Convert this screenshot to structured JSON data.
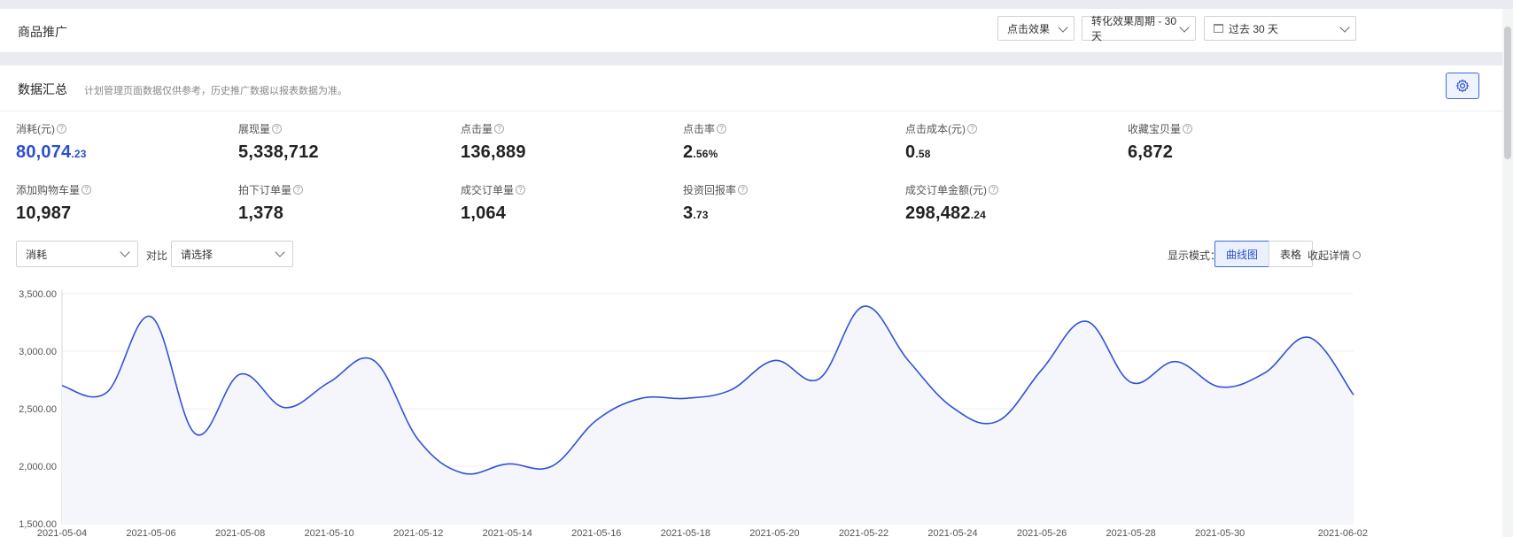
{
  "header": {
    "title": "商品推广",
    "filters": {
      "effect": "点击效果",
      "period": "转化效果周期 - 30天",
      "range": "过去 30 天"
    }
  },
  "summary": {
    "title": "数据汇总",
    "note": "计划管理页面数据仅供参考，历史推广数据以报表数据为准。",
    "metrics": [
      {
        "label": "消耗(元)",
        "int": "80,074",
        "dec": ".23"
      },
      {
        "label": "展现量",
        "int": "5,338,712",
        "dec": ""
      },
      {
        "label": "点击量",
        "int": "136,889",
        "dec": ""
      },
      {
        "label": "点击率",
        "int": "2",
        "dec": ".56%"
      },
      {
        "label": "点击成本(元)",
        "int": "0",
        "dec": ".58"
      },
      {
        "label": "收藏宝贝量",
        "int": "6,872",
        "dec": ""
      },
      {
        "label": "添加购物车量",
        "int": "10,987",
        "dec": ""
      },
      {
        "label": "拍下订单量",
        "int": "1,378",
        "dec": ""
      },
      {
        "label": "成交订单量",
        "int": "1,064",
        "dec": ""
      },
      {
        "label": "投资回报率",
        "int": "3",
        "dec": ".73"
      },
      {
        "label": "成交订单金额(元)",
        "int": "298,482",
        "dec": ".24"
      }
    ]
  },
  "controls": {
    "metric_select": "消耗",
    "compare_label": "对比",
    "compare_placeholder": "请选择",
    "mode_label": "显示模式：",
    "mode_curve": "曲线图",
    "mode_table": "表格",
    "collapse": "收起详情"
  },
  "colors": {
    "accent": "#2b4fcf",
    "line": "#3152d6",
    "area": "#f5f6fb"
  },
  "chart_data": {
    "type": "area",
    "x": [
      "2021-05-04",
      "2021-05-05",
      "2021-05-06",
      "2021-05-07",
      "2021-05-08",
      "2021-05-09",
      "2021-05-10",
      "2021-05-11",
      "2021-05-12",
      "2021-05-13",
      "2021-05-14",
      "2021-05-15",
      "2021-05-16",
      "2021-05-17",
      "2021-05-18",
      "2021-05-19",
      "2021-05-20",
      "2021-05-21",
      "2021-05-22",
      "2021-05-23",
      "2021-05-24",
      "2021-05-25",
      "2021-05-26",
      "2021-05-27",
      "2021-05-28",
      "2021-05-29",
      "2021-05-30",
      "2021-05-31",
      "2021-06-01",
      "2021-06-02"
    ],
    "x_tick_labels": [
      "2021-05-04",
      "2021-05-06",
      "2021-05-08",
      "2021-05-10",
      "2021-05-12",
      "2021-05-14",
      "2021-05-16",
      "2021-05-18",
      "2021-05-20",
      "2021-05-22",
      "2021-05-24",
      "2021-05-26",
      "2021-05-28",
      "2021-05-30",
      "2021-06-02"
    ],
    "series": [
      {
        "values": [
          2700,
          2640,
          3300,
          2280,
          2800,
          2510,
          2730,
          2920,
          2230,
          1940,
          2020,
          2000,
          2400,
          2590,
          2590,
          2660,
          2920,
          2760,
          3390,
          2920,
          2510,
          2390,
          2840,
          3260,
          2730,
          2910,
          2690,
          2810,
          3120,
          2620
        ]
      }
    ],
    "ylim": [
      1500,
      3500
    ],
    "y_ticks": [
      "1,500.00",
      "2,000.00",
      "2,500.00",
      "3,000.00",
      "3,500.00"
    ],
    "grid": true
  }
}
